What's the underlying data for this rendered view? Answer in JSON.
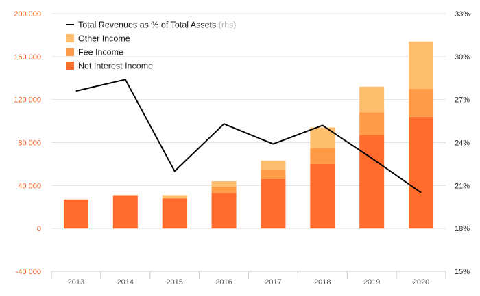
{
  "chart_data": {
    "type": "bar",
    "stacked": true,
    "categories": [
      "2013",
      "2014",
      "2015",
      "2016",
      "2017",
      "2018",
      "2019",
      "2020"
    ],
    "series": [
      {
        "name": "Net Interest Income",
        "color": "#ff6b2c",
        "values": [
          27000,
          31000,
          28000,
          33000,
          46000,
          60000,
          87000,
          104000
        ]
      },
      {
        "name": "Fee Income",
        "color": "#ff9a47",
        "values": [
          0,
          0,
          0,
          6000,
          9000,
          15000,
          21000,
          26000
        ]
      },
      {
        "name": "Other Income",
        "color": "#ffbd6e",
        "values": [
          0,
          0,
          3000,
          5000,
          8000,
          19000,
          24000,
          44000
        ]
      }
    ],
    "line": {
      "name": "Total Revenues as % of Total Assets",
      "suffix": "(rhs)",
      "color": "#000000",
      "values": [
        27.6,
        28.4,
        22.0,
        25.3,
        23.9,
        25.2,
        22.9,
        20.5
      ]
    },
    "y_left": {
      "min": -40000,
      "max": 200000,
      "ticks": [
        -40000,
        0,
        40000,
        80000,
        120000,
        160000,
        200000
      ],
      "tick_labels": [
        "-40 000",
        "0",
        "40 000",
        "80 000",
        "120 000",
        "160 000",
        "200 000"
      ]
    },
    "y_right": {
      "min": 15,
      "max": 33,
      "ticks": [
        15,
        18,
        21,
        24,
        27,
        30,
        33
      ],
      "tick_labels": [
        "15%",
        "18%",
        "21%",
        "24%",
        "27%",
        "30%",
        "33%"
      ]
    },
    "legend": {
      "position": "top-left",
      "items": [
        {
          "label": "Total Revenues as % of Total Assets",
          "note": "(rhs)",
          "kind": "line",
          "color": "#000000"
        },
        {
          "label": "Other Income",
          "kind": "box",
          "color": "#ffbd6e"
        },
        {
          "label": "Fee Income",
          "kind": "box",
          "color": "#ff9a47"
        },
        {
          "label": "Net Interest Income",
          "kind": "box",
          "color": "#ff6b2c"
        }
      ]
    }
  }
}
